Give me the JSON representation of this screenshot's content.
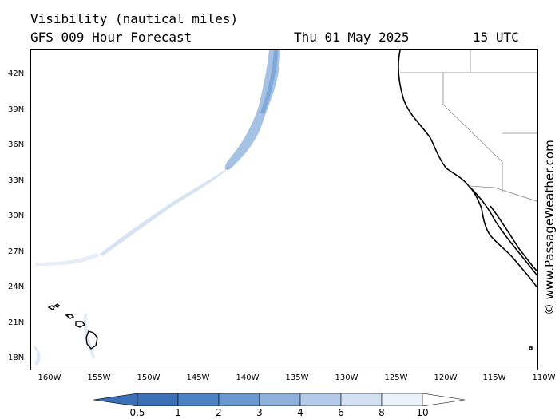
{
  "title": {
    "line1": "Visibility (nautical miles)",
    "line2": "GFS 009 Hour Forecast",
    "date": "Thu 01 May 2025",
    "time": "15 UTC"
  },
  "watermark": "© www.PassageWeather.com",
  "map": {
    "lat_ticks": [
      "42N",
      "39N",
      "36N",
      "33N",
      "30N",
      "27N",
      "24N",
      "21N",
      "18N"
    ],
    "lon_ticks": [
      "160W",
      "155W",
      "150W",
      "145W",
      "140W",
      "135W",
      "130W",
      "125W",
      "120W",
      "115W",
      "110W"
    ],
    "lat_range": [
      17,
      44
    ],
    "lon_range": [
      -162,
      -110
    ]
  },
  "colorbar": {
    "labels": [
      "0.5",
      "1",
      "2",
      "3",
      "4",
      "6",
      "8",
      "10"
    ],
    "colors": [
      "#3b6fb6",
      "#4c82c4",
      "#6a98d0",
      "#8fb2dc",
      "#b3cbe8",
      "#d3e2f2",
      "#ecf2fa",
      "#ffffff"
    ]
  }
}
